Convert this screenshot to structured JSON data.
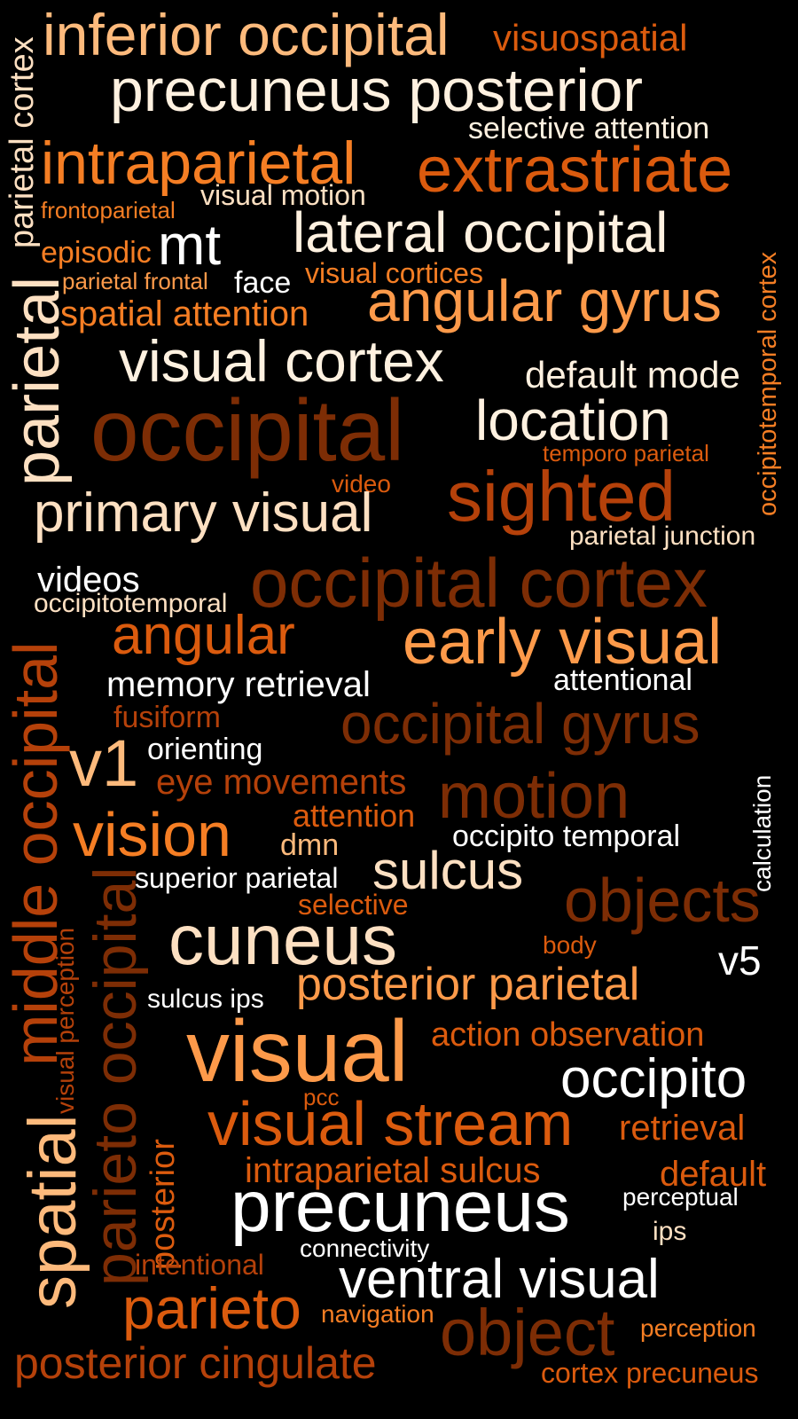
{
  "colors": {
    "background": "#000000",
    "cream": "#fff1e0",
    "pale": "#fde0c2",
    "peach": "#fdba7c",
    "light_orange": "#fd9a4a",
    "orange": "#f57e24",
    "dark_orange": "#db5b0e",
    "rust": "#b5410a",
    "brown": "#7d2d05"
  },
  "words": {
    "w_parietal_cortex": "parietal cortex",
    "w_inferior_occipital": "inferior occipital",
    "w_visuospatial": "visuospatial",
    "w_precuneus_posterior": "precuneus posterior",
    "w_selective_attention": "selective attention",
    "w_intraparietal": "intraparietal",
    "w_extrastriate": "extrastriate",
    "w_visual_motion": "visual motion",
    "w_frontoparietal": "frontoparietal",
    "w_lateral_occipital": "lateral occipital",
    "w_mt": "mt",
    "w_episodic": "episodic",
    "w_face": "face",
    "w_visual_cortices": "visual cortices",
    "w_parietal_frontal": "parietal frontal",
    "w_angular_gyrus": "angular gyrus",
    "w_occipitotemporal_cortex": "occipitotemporal cortex",
    "w_spatial_attention": "spatial attention",
    "w_parietal": "parietal",
    "w_visual_cortex": "visual cortex",
    "w_default_mode": "default mode",
    "w_occipital": "occipital",
    "w_location": "location",
    "w_temporo_parietal": "temporo parietal",
    "w_video": "video",
    "w_sighted": "sighted",
    "w_primary_visual": "primary visual",
    "w_parietal_junction": "parietal junction",
    "w_videos": "videos",
    "w_occipital_cortex": "occipital cortex",
    "w_occipitotemporal": "occipitotemporal",
    "w_angular": "angular",
    "w_early_visual": "early visual",
    "w_memory_retrieval": "memory retrieval",
    "w_attentional": "attentional",
    "w_middle_occipital": "middle occipital",
    "w_fusiform": "fusiform",
    "w_occipital_gyrus": "occipital gyrus",
    "w_orienting": "orienting",
    "w_v1": "v1",
    "w_eye_movements": "eye movements",
    "w_motion": "motion",
    "w_calculation": "calculation",
    "w_attention": "attention",
    "w_vision": "vision",
    "w_dmn": "dmn",
    "w_occipito_temporal": "occipito temporal",
    "w_visual_perception": "visual perception",
    "w_superior_parietal": "superior parietal",
    "w_sulcus": "sulcus",
    "w_objects": "objects",
    "w_selective": "selective",
    "w_parieto_occipital": "parieto occipital",
    "w_cuneus": "cuneus",
    "w_body": "body",
    "w_v5": "v5",
    "w_posterior_parietal": "posterior parietal",
    "w_sulcus_ips": "sulcus ips",
    "w_visual": "visual",
    "w_action_observation": "action observation",
    "w_occipito": "occipito",
    "w_spatial": "spatial",
    "w_posterior": "posterior",
    "w_pcc": "pcc",
    "w_visual_stream": "visual stream",
    "w_retrieval": "retrieval",
    "w_intraparietal_sulcus": "intraparietal sulcus",
    "w_default": "default",
    "w_precuneus": "precuneus",
    "w_perceptual": "perceptual",
    "w_ips": "ips",
    "w_connectivity": "connectivity",
    "w_intentional": "intentional",
    "w_ventral_visual": "ventral visual",
    "w_parieto": "parieto",
    "w_navigation": "navigation",
    "w_object": "object",
    "w_perception": "perception",
    "w_posterior_cingulate": "posterior cingulate",
    "w_cortex_precuneus": "cortex precuneus"
  }
}
